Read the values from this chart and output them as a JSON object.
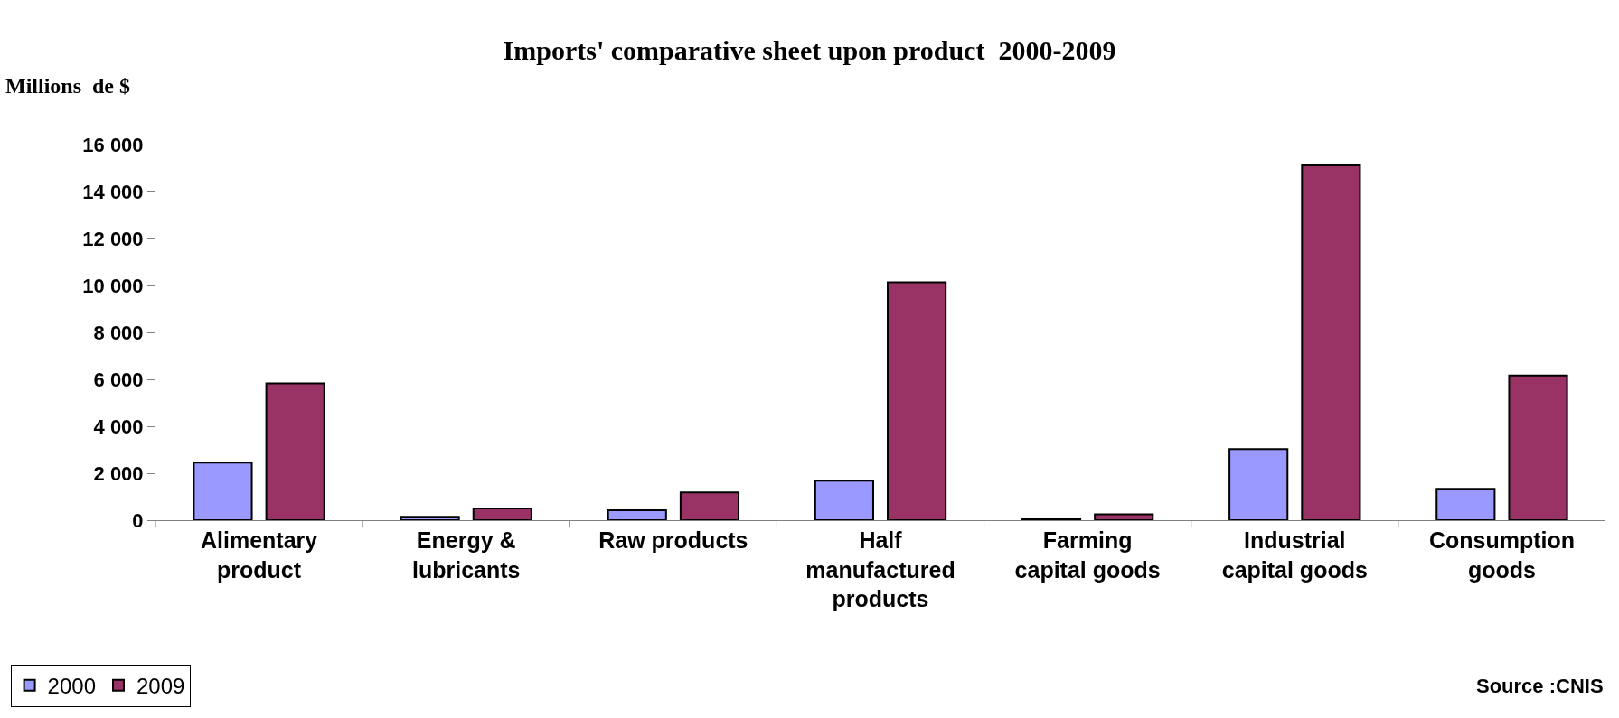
{
  "chart_data": {
    "type": "bar",
    "title": "Imports' comparative sheet upon product  2000-2009",
    "ylabel": "Millions  de $",
    "categories": [
      "Alimentary product",
      "Energy & lubricants",
      "Raw products",
      "Half manufactured products",
      "Farming capital goods",
      "Industrial capital goods",
      "Consumption goods"
    ],
    "series": [
      {
        "name": "2000",
        "color": "#9999ff",
        "values": [
          2450,
          140,
          420,
          1680,
          80,
          3030,
          1340
        ]
      },
      {
        "name": "2009",
        "color": "#993366",
        "values": [
          5830,
          500,
          1180,
          10130,
          250,
          15120,
          6160
        ]
      }
    ],
    "ylim": [
      0,
      16000
    ],
    "yticks": [
      {
        "value": 0,
        "label": "0"
      },
      {
        "value": 2000,
        "label": "2 000"
      },
      {
        "value": 4000,
        "label": "4 000"
      },
      {
        "value": 6000,
        "label": "6 000"
      },
      {
        "value": 8000,
        "label": "8 000"
      },
      {
        "value": 10000,
        "label": "10 000"
      },
      {
        "value": 12000,
        "label": "12 000"
      },
      {
        "value": 14000,
        "label": "14 000"
      },
      {
        "value": 16000,
        "label": "16 000"
      }
    ],
    "annotations": [
      "Source :CNIS"
    ],
    "legend": "bottom left"
  }
}
